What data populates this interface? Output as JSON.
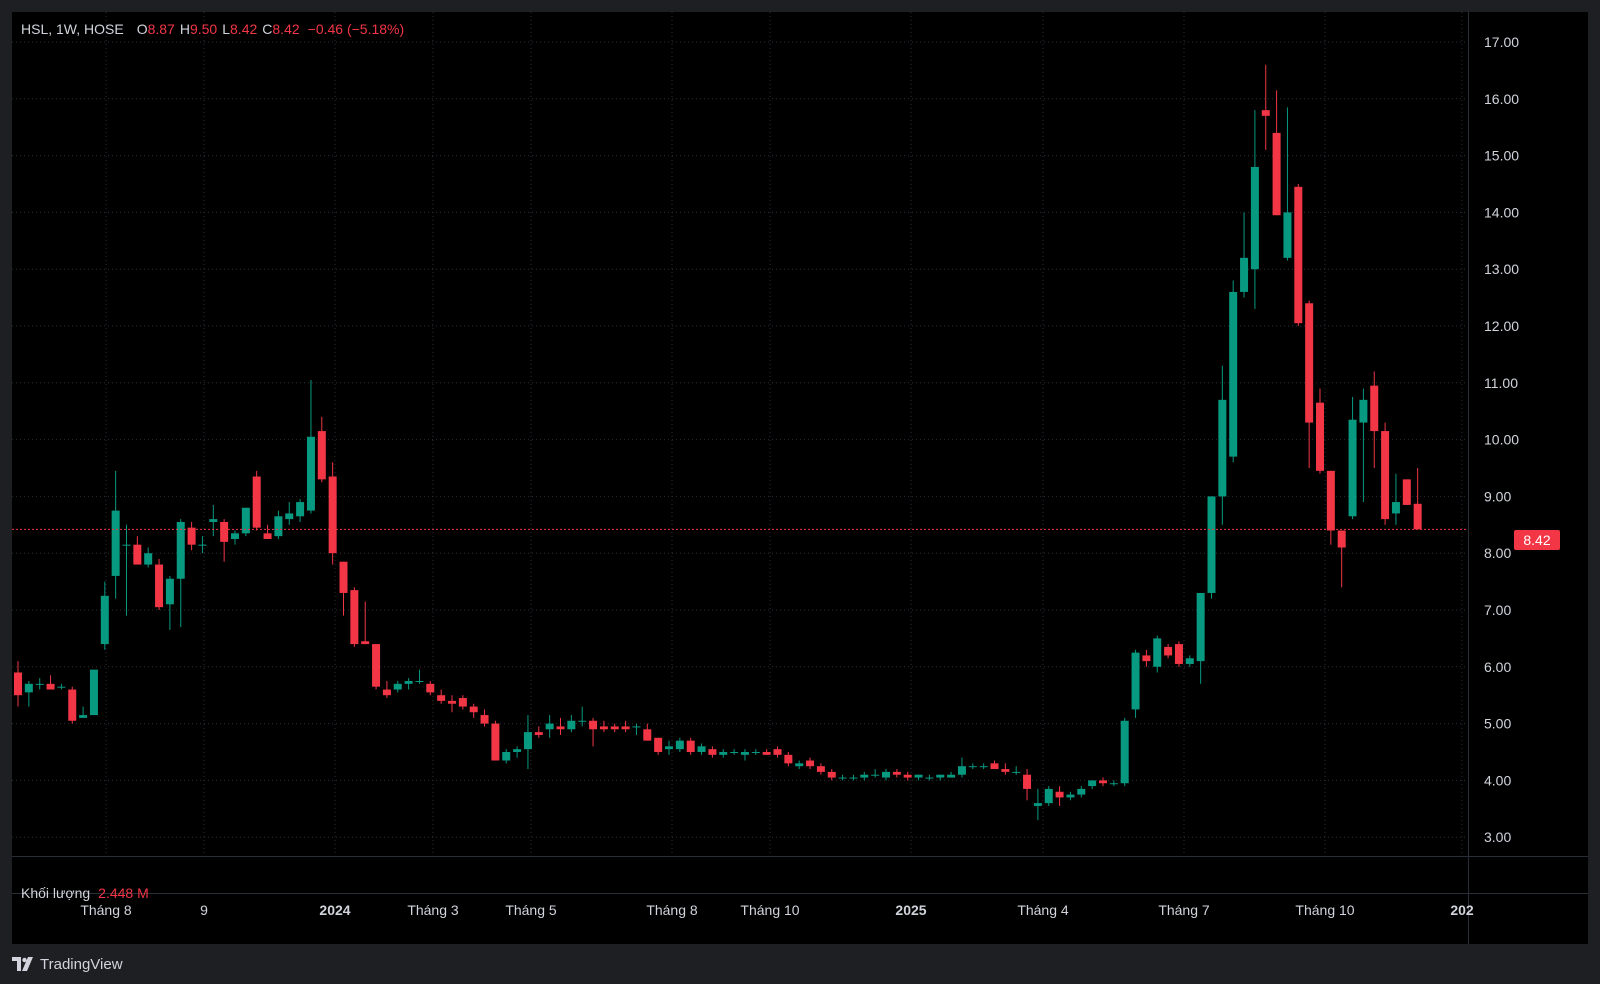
{
  "legend": {
    "symbol": "HSL, 1W, HOSE",
    "o_label": "O",
    "o_value": "8.87",
    "h_label": "H",
    "h_value": "9.50",
    "l_label": "L",
    "l_value": "8.42",
    "c_label": "C",
    "c_value": "8.42",
    "change": "−0.46 (−5.18%)"
  },
  "volume": {
    "label": "Khối lượng",
    "value": "2.448 M"
  },
  "last_price_badge": "8.42",
  "brand": {
    "name": "TradingView",
    "icon": "tradingview-logo-icon"
  },
  "colors": {
    "up": "#089981",
    "down": "#f23645",
    "background": "#000000",
    "grid": "#2a2e39",
    "text": "#d1d4dc"
  },
  "chart_data": {
    "type": "candlestick",
    "symbol": "HSL",
    "interval": "1W",
    "exchange": "HOSE",
    "y_ticks": [
      "17.00",
      "16.00",
      "15.00",
      "14.00",
      "13.00",
      "12.00",
      "11.00",
      "10.00",
      "9.00",
      "8.00",
      "7.00",
      "6.00",
      "5.00",
      "4.00",
      "3.00"
    ],
    "ylim": [
      2.7,
      17.5
    ],
    "x_ticks": [
      {
        "label": "Tháng 8",
        "bold": false
      },
      {
        "label": "9",
        "bold": false
      },
      {
        "label": "2024",
        "bold": true
      },
      {
        "label": "Tháng 3",
        "bold": false
      },
      {
        "label": "Tháng 5",
        "bold": false
      },
      {
        "label": "Tháng 8",
        "bold": false
      },
      {
        "label": "Tháng 10",
        "bold": false
      },
      {
        "label": "2025",
        "bold": true
      },
      {
        "label": "Tháng 4",
        "bold": false
      },
      {
        "label": "Tháng 7",
        "bold": false
      },
      {
        "label": "Tháng 10",
        "bold": false
      },
      {
        "label": "202",
        "bold": true
      }
    ],
    "last_price": 8.42,
    "candles": [
      [
        5.9,
        6.1,
        5.3,
        5.5
      ],
      [
        5.55,
        5.75,
        5.3,
        5.7
      ],
      [
        5.7,
        5.8,
        5.6,
        5.7
      ],
      [
        5.7,
        5.85,
        5.6,
        5.6
      ],
      [
        5.65,
        5.7,
        5.6,
        5.65
      ],
      [
        5.6,
        5.65,
        5.0,
        5.05
      ],
      [
        5.1,
        5.3,
        5.1,
        5.15
      ],
      [
        5.15,
        5.95,
        5.15,
        5.95
      ],
      [
        6.4,
        7.5,
        6.3,
        7.25
      ],
      [
        7.6,
        9.45,
        7.2,
        8.75
      ],
      [
        8.15,
        8.5,
        6.9,
        8.15
      ],
      [
        8.15,
        8.3,
        7.8,
        7.8
      ],
      [
        7.8,
        8.1,
        7.75,
        8.0
      ],
      [
        7.8,
        7.9,
        7.0,
        7.05
      ],
      [
        7.1,
        7.6,
        6.65,
        7.55
      ],
      [
        7.55,
        8.6,
        6.7,
        8.55
      ],
      [
        8.45,
        8.55,
        8.05,
        8.15
      ],
      [
        8.15,
        8.3,
        8.0,
        8.15
      ],
      [
        8.55,
        8.85,
        8.3,
        8.6
      ],
      [
        8.55,
        8.6,
        7.85,
        8.2
      ],
      [
        8.25,
        8.4,
        8.15,
        8.35
      ],
      [
        8.35,
        8.8,
        8.3,
        8.8
      ],
      [
        9.35,
        9.45,
        8.4,
        8.45
      ],
      [
        8.35,
        8.5,
        8.25,
        8.25
      ],
      [
        8.3,
        8.75,
        8.25,
        8.65
      ],
      [
        8.6,
        8.9,
        8.5,
        8.7
      ],
      [
        8.65,
        8.95,
        8.55,
        8.9
      ],
      [
        8.75,
        11.05,
        8.7,
        10.05
      ],
      [
        10.15,
        10.4,
        9.25,
        9.3
      ],
      [
        9.35,
        9.6,
        7.8,
        8.0
      ],
      [
        7.85,
        7.85,
        6.9,
        7.3
      ],
      [
        7.35,
        7.4,
        6.35,
        6.4
      ],
      [
        6.45,
        7.15,
        6.4,
        6.4
      ],
      [
        6.4,
        6.4,
        5.6,
        5.65
      ],
      [
        5.6,
        5.75,
        5.45,
        5.5
      ],
      [
        5.6,
        5.75,
        5.55,
        5.7
      ],
      [
        5.7,
        5.8,
        5.6,
        5.75
      ],
      [
        5.75,
        5.95,
        5.7,
        5.75
      ],
      [
        5.7,
        5.75,
        5.5,
        5.55
      ],
      [
        5.5,
        5.6,
        5.35,
        5.4
      ],
      [
        5.4,
        5.5,
        5.2,
        5.35
      ],
      [
        5.45,
        5.5,
        5.25,
        5.3
      ],
      [
        5.3,
        5.35,
        5.1,
        5.2
      ],
      [
        5.15,
        5.25,
        4.95,
        5.0
      ],
      [
        5.0,
        5.05,
        4.35,
        4.35
      ],
      [
        4.35,
        4.55,
        4.3,
        4.5
      ],
      [
        4.5,
        4.6,
        4.4,
        4.55
      ],
      [
        4.55,
        5.15,
        4.2,
        4.85
      ],
      [
        4.85,
        4.95,
        4.75,
        4.8
      ],
      [
        4.9,
        5.15,
        4.75,
        5.0
      ],
      [
        4.95,
        5.1,
        4.8,
        4.9
      ],
      [
        4.9,
        5.15,
        4.85,
        5.05
      ],
      [
        5.05,
        5.3,
        4.95,
        5.05
      ],
      [
        5.05,
        5.1,
        4.6,
        4.9
      ],
      [
        4.95,
        5.05,
        4.85,
        4.9
      ],
      [
        4.95,
        5.0,
        4.85,
        4.9
      ],
      [
        4.95,
        5.05,
        4.85,
        4.9
      ],
      [
        4.95,
        5.0,
        4.8,
        4.95
      ],
      [
        4.9,
        5.0,
        4.7,
        4.7
      ],
      [
        4.75,
        4.75,
        4.45,
        4.5
      ],
      [
        4.55,
        4.7,
        4.45,
        4.6
      ],
      [
        4.55,
        4.75,
        4.5,
        4.7
      ],
      [
        4.7,
        4.75,
        4.45,
        4.5
      ],
      [
        4.5,
        4.65,
        4.45,
        4.6
      ],
      [
        4.55,
        4.6,
        4.4,
        4.45
      ],
      [
        4.45,
        4.55,
        4.4,
        4.5
      ],
      [
        4.5,
        4.55,
        4.45,
        4.5
      ],
      [
        4.45,
        4.55,
        4.35,
        4.5
      ],
      [
        4.5,
        4.55,
        4.45,
        4.5
      ],
      [
        4.5,
        4.55,
        4.45,
        4.45
      ],
      [
        4.55,
        4.6,
        4.4,
        4.45
      ],
      [
        4.45,
        4.5,
        4.25,
        4.3
      ],
      [
        4.25,
        4.35,
        4.2,
        4.3
      ],
      [
        4.35,
        4.4,
        4.2,
        4.25
      ],
      [
        4.25,
        4.3,
        4.1,
        4.15
      ],
      [
        4.15,
        4.2,
        4.0,
        4.05
      ],
      [
        4.05,
        4.1,
        4.0,
        4.05
      ],
      [
        4.05,
        4.1,
        4.0,
        4.05
      ],
      [
        4.05,
        4.15,
        4.0,
        4.1
      ],
      [
        4.1,
        4.2,
        4.05,
        4.1
      ],
      [
        4.05,
        4.2,
        4.0,
        4.15
      ],
      [
        4.15,
        4.2,
        4.05,
        4.1
      ],
      [
        4.1,
        4.15,
        4.0,
        4.05
      ],
      [
        4.05,
        4.1,
        4.0,
        4.1
      ],
      [
        4.05,
        4.1,
        4.0,
        4.05
      ],
      [
        4.05,
        4.1,
        4.0,
        4.1
      ],
      [
        4.05,
        4.15,
        4.05,
        4.1
      ],
      [
        4.1,
        4.4,
        4.05,
        4.25
      ],
      [
        4.25,
        4.3,
        4.2,
        4.25
      ],
      [
        4.25,
        4.3,
        4.2,
        4.25
      ],
      [
        4.3,
        4.35,
        4.2,
        4.2
      ],
      [
        4.2,
        4.3,
        4.1,
        4.15
      ],
      [
        4.15,
        4.25,
        4.1,
        4.15
      ],
      [
        4.1,
        4.2,
        3.65,
        3.85
      ],
      [
        3.55,
        3.85,
        3.3,
        3.6
      ],
      [
        3.6,
        3.9,
        3.55,
        3.85
      ],
      [
        3.8,
        3.9,
        3.55,
        3.7
      ],
      [
        3.7,
        3.8,
        3.65,
        3.75
      ],
      [
        3.75,
        3.9,
        3.7,
        3.85
      ],
      [
        3.9,
        4.0,
        3.85,
        4.0
      ],
      [
        4.0,
        4.05,
        3.9,
        3.95
      ],
      [
        3.95,
        4.0,
        3.9,
        3.95
      ],
      [
        3.95,
        5.1,
        3.9,
        5.05
      ],
      [
        5.25,
        6.3,
        5.1,
        6.25
      ],
      [
        6.2,
        6.3,
        6.0,
        6.1
      ],
      [
        6.0,
        6.55,
        5.9,
        6.5
      ],
      [
        6.35,
        6.4,
        6.15,
        6.2
      ],
      [
        6.4,
        6.45,
        6.0,
        6.05
      ],
      [
        6.05,
        6.2,
        6.0,
        6.15
      ],
      [
        6.1,
        7.3,
        5.7,
        7.3
      ],
      [
        7.3,
        9.0,
        7.2,
        9.0
      ],
      [
        9.0,
        11.3,
        8.5,
        10.7
      ],
      [
        9.7,
        12.8,
        9.6,
        12.6
      ],
      [
        12.6,
        14.0,
        12.5,
        13.2
      ],
      [
        13.0,
        15.8,
        12.3,
        14.8
      ],
      [
        15.8,
        16.6,
        15.1,
        15.7
      ],
      [
        15.4,
        16.15,
        14.0,
        13.95
      ],
      [
        13.2,
        15.85,
        13.15,
        14.0
      ],
      [
        14.45,
        14.5,
        12.0,
        12.05
      ],
      [
        12.4,
        12.45,
        9.5,
        10.3
      ],
      [
        10.65,
        10.9,
        9.4,
        9.45
      ],
      [
        9.45,
        9.45,
        8.15,
        8.4
      ],
      [
        8.4,
        8.4,
        7.4,
        8.1
      ],
      [
        8.65,
        10.75,
        8.6,
        10.35
      ],
      [
        10.3,
        10.9,
        8.9,
        10.7
      ],
      [
        10.95,
        11.2,
        9.5,
        10.15
      ],
      [
        10.15,
        10.3,
        8.5,
        8.6
      ],
      [
        8.7,
        9.4,
        8.5,
        8.9
      ],
      [
        9.3,
        9.3,
        8.85,
        8.85
      ],
      [
        8.87,
        9.5,
        8.42,
        8.42
      ]
    ]
  }
}
